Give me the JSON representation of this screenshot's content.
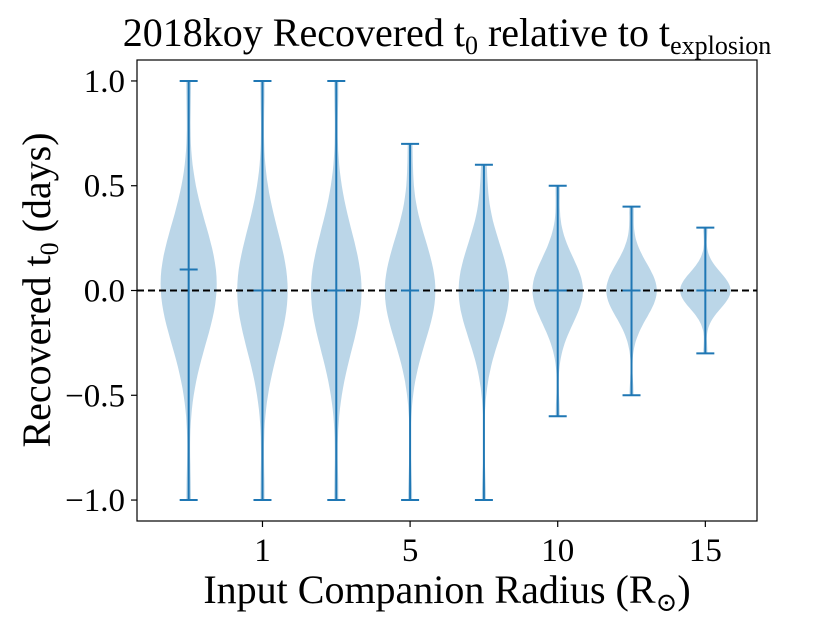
{
  "chart_data": {
    "type": "violin",
    "title": "2018koy Recovered t",
    "title_sub": "0",
    "title_mid": " relative to t",
    "title_sub2": "explosion",
    "xlabel": "Input Companion Radius (R",
    "xlabel_sub": "⊙",
    "xlabel_end": ")",
    "ylabel": "Recovered t",
    "ylabel_sub": "0",
    "ylabel_end": "  (days)",
    "ylim": [
      -1.1,
      1.1
    ],
    "yticks": [
      {
        "value": 1.0,
        "label": "1.0"
      },
      {
        "value": 0.5,
        "label": "0.5"
      },
      {
        "value": 0.0,
        "label": "0.0"
      },
      {
        "value": -0.5,
        "label": "−0.5"
      },
      {
        "value": -1.0,
        "label": "−1.0"
      }
    ],
    "xticks": [
      {
        "position": 2,
        "label": "1"
      },
      {
        "position": 4,
        "label": "5"
      },
      {
        "position": 6,
        "label": "10"
      },
      {
        "position": 8,
        "label": "15"
      }
    ],
    "xlim": [
      0.3,
      8.7
    ],
    "reference_line": 0.0,
    "violins": [
      {
        "position": 1,
        "min": -1.0,
        "max": 1.0,
        "median": 0.1,
        "width_scale": 1.0
      },
      {
        "position": 2,
        "min": -1.0,
        "max": 1.0,
        "median": 0.0,
        "width_scale": 1.0
      },
      {
        "position": 3,
        "min": -1.0,
        "max": 1.0,
        "median": 0.0,
        "width_scale": 1.0
      },
      {
        "position": 4,
        "min": -1.0,
        "max": 0.7,
        "median": 0.0,
        "width_scale": 1.0
      },
      {
        "position": 5,
        "min": -1.0,
        "max": 0.6,
        "median": 0.0,
        "width_scale": 1.0
      },
      {
        "position": 6,
        "min": -0.6,
        "max": 0.5,
        "median": 0.0,
        "width_scale": 1.0
      },
      {
        "position": 7,
        "min": -0.5,
        "max": 0.4,
        "median": 0.0,
        "width_scale": 1.0
      },
      {
        "position": 8,
        "min": -0.3,
        "max": 0.3,
        "median": 0.0,
        "width_scale": 1.0
      }
    ],
    "colors": {
      "body": "#1f77b4",
      "line": "#1f77b4"
    }
  }
}
